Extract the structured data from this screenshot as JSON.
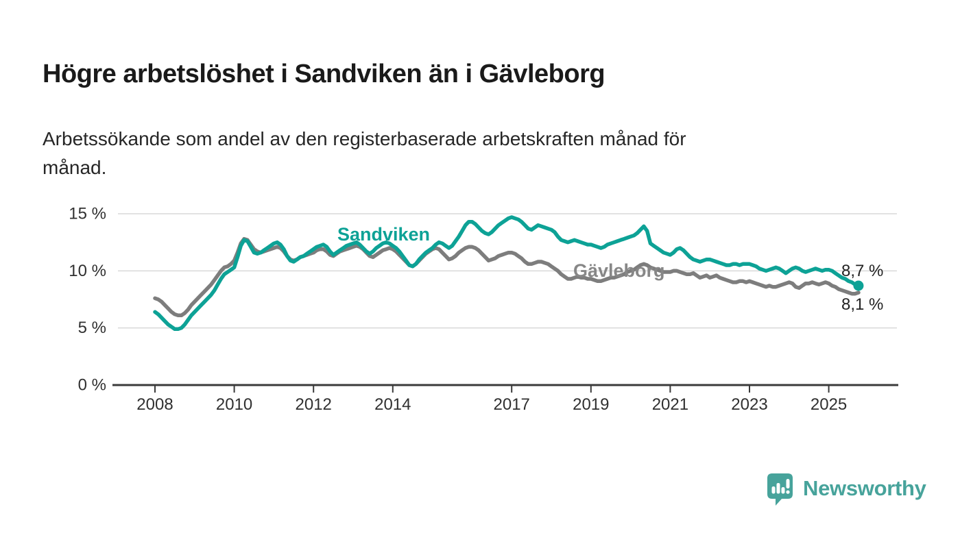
{
  "header": {
    "title": "Högre arbetslöshet i Sandviken än i Gävleborg",
    "subtitle": "Arbetssökande som andel av den registerbaserade arbetskraften månad för\nmånad."
  },
  "branding": {
    "logo_text": "Newsworthy",
    "logo_color": "#47a39b"
  },
  "colors": {
    "sandviken": "#0da296",
    "gavleborg": "#7d7d7d",
    "gavleborg_label": "#878787",
    "gridline": "#d9d9d9",
    "axis": "#3a3a3a"
  },
  "chart_data": {
    "type": "line",
    "unit": "%",
    "resolution": "monthly",
    "x_start": {
      "year": 2008,
      "month": 1
    },
    "x_end": {
      "year": 2025,
      "month": 10
    },
    "ylim": [
      0,
      15
    ],
    "grid": "horizontal",
    "legend_position": "inline-labels",
    "yticks": [
      {
        "value": 0,
        "label": "0 %"
      },
      {
        "value": 5,
        "label": "5 %"
      },
      {
        "value": 10,
        "label": "10 %"
      },
      {
        "value": 15,
        "label": "15 %"
      }
    ],
    "xticks": [
      {
        "year": 2008,
        "label": "2008"
      },
      {
        "year": 2010,
        "label": "2010"
      },
      {
        "year": 2012,
        "label": "2012"
      },
      {
        "year": 2014,
        "label": "2014"
      },
      {
        "year": 2017,
        "label": "2017"
      },
      {
        "year": 2019,
        "label": "2019"
      },
      {
        "year": 2021,
        "label": "2021"
      },
      {
        "year": 2023,
        "label": "2023"
      },
      {
        "year": 2025,
        "label": "2025"
      }
    ],
    "series": [
      {
        "name": "Sandviken",
        "end_label": "8,7 %",
        "end_value": 8.7,
        "values": [
          6.4,
          6.2,
          5.9,
          5.6,
          5.3,
          5.1,
          4.9,
          4.9,
          5.0,
          5.3,
          5.7,
          6.1,
          6.4,
          6.7,
          7.0,
          7.3,
          7.6,
          7.9,
          8.3,
          8.8,
          9.3,
          9.7,
          9.9,
          10.1,
          10.3,
          11.2,
          12.2,
          12.7,
          12.6,
          12.1,
          11.6,
          11.5,
          11.6,
          11.8,
          12.0,
          12.2,
          12.4,
          12.5,
          12.3,
          11.9,
          11.3,
          10.9,
          10.8,
          11.0,
          11.2,
          11.3,
          11.5,
          11.7,
          11.9,
          12.1,
          12.2,
          12.3,
          12.1,
          11.7,
          11.4,
          11.6,
          11.8,
          12.0,
          12.2,
          12.3,
          12.4,
          12.5,
          12.3,
          12.0,
          11.7,
          11.5,
          11.7,
          12.0,
          12.2,
          12.4,
          12.5,
          12.4,
          12.2,
          12.0,
          11.7,
          11.3,
          10.9,
          10.5,
          10.4,
          10.6,
          11.0,
          11.3,
          11.6,
          11.8,
          12.0,
          12.3,
          12.5,
          12.4,
          12.2,
          12.0,
          12.2,
          12.6,
          13.0,
          13.5,
          14.0,
          14.3,
          14.3,
          14.1,
          13.8,
          13.5,
          13.3,
          13.2,
          13.4,
          13.7,
          14.0,
          14.2,
          14.4,
          14.6,
          14.7,
          14.6,
          14.5,
          14.3,
          14.0,
          13.7,
          13.6,
          13.8,
          14.0,
          13.9,
          13.8,
          13.7,
          13.6,
          13.4,
          13.0,
          12.7,
          12.6,
          12.5,
          12.6,
          12.7,
          12.6,
          12.5,
          12.4,
          12.3,
          12.3,
          12.2,
          12.1,
          12.0,
          12.1,
          12.3,
          12.4,
          12.5,
          12.6,
          12.7,
          12.8,
          12.9,
          13.0,
          13.1,
          13.3,
          13.6,
          13.9,
          13.5,
          12.4,
          12.2,
          12.0,
          11.8,
          11.6,
          11.5,
          11.4,
          11.6,
          11.9,
          12.0,
          11.8,
          11.5,
          11.2,
          11.0,
          10.9,
          10.8,
          10.9,
          11.0,
          11.0,
          10.9,
          10.8,
          10.7,
          10.6,
          10.5,
          10.5,
          10.6,
          10.6,
          10.5,
          10.6,
          10.6,
          10.6,
          10.5,
          10.4,
          10.2,
          10.1,
          10.0,
          10.1,
          10.2,
          10.3,
          10.2,
          10.0,
          9.8,
          10.0,
          10.2,
          10.3,
          10.2,
          10.0,
          9.9,
          10.0,
          10.1,
          10.2,
          10.1,
          10.0,
          10.1,
          10.1,
          10.0,
          9.8,
          9.6,
          9.4,
          9.3,
          9.1,
          9.0,
          8.8,
          8.7
        ]
      },
      {
        "name": "Gävleborg",
        "end_label": "8,1 %",
        "end_value": 8.1,
        "values": [
          7.6,
          7.5,
          7.3,
          7.0,
          6.7,
          6.4,
          6.2,
          6.1,
          6.1,
          6.3,
          6.6,
          7.0,
          7.3,
          7.6,
          7.9,
          8.2,
          8.5,
          8.8,
          9.2,
          9.6,
          10.0,
          10.3,
          10.4,
          10.6,
          10.9,
          11.6,
          12.4,
          12.8,
          12.7,
          12.3,
          11.9,
          11.7,
          11.6,
          11.7,
          11.8,
          11.9,
          12.0,
          12.1,
          12.0,
          11.7,
          11.3,
          11.0,
          10.9,
          11.0,
          11.2,
          11.3,
          11.4,
          11.5,
          11.6,
          11.8,
          11.9,
          11.9,
          11.7,
          11.4,
          11.3,
          11.5,
          11.7,
          11.8,
          11.9,
          12.0,
          12.1,
          12.2,
          12.1,
          11.9,
          11.6,
          11.3,
          11.2,
          11.4,
          11.6,
          11.8,
          11.9,
          12.0,
          11.9,
          11.7,
          11.4,
          11.1,
          10.8,
          10.5,
          10.4,
          10.6,
          10.9,
          11.2,
          11.5,
          11.7,
          11.9,
          12.0,
          11.9,
          11.6,
          11.3,
          11.0,
          11.1,
          11.3,
          11.6,
          11.8,
          12.0,
          12.1,
          12.1,
          12.0,
          11.8,
          11.5,
          11.2,
          10.9,
          11.0,
          11.1,
          11.3,
          11.4,
          11.5,
          11.6,
          11.6,
          11.5,
          11.3,
          11.1,
          10.8,
          10.6,
          10.6,
          10.7,
          10.8,
          10.8,
          10.7,
          10.6,
          10.4,
          10.2,
          10.0,
          9.7,
          9.5,
          9.3,
          9.3,
          9.4,
          9.5,
          9.4,
          9.4,
          9.3,
          9.3,
          9.2,
          9.1,
          9.1,
          9.2,
          9.3,
          9.4,
          9.4,
          9.5,
          9.6,
          9.7,
          9.9,
          10.0,
          10.1,
          10.3,
          10.5,
          10.6,
          10.5,
          10.3,
          10.2,
          10.1,
          10.0,
          9.9,
          9.9,
          9.9,
          10.0,
          10.0,
          9.9,
          9.8,
          9.7,
          9.7,
          9.8,
          9.6,
          9.4,
          9.5,
          9.6,
          9.4,
          9.5,
          9.6,
          9.4,
          9.3,
          9.2,
          9.1,
          9.0,
          9.0,
          9.1,
          9.1,
          9.0,
          9.1,
          9.0,
          8.9,
          8.8,
          8.7,
          8.6,
          8.7,
          8.6,
          8.6,
          8.7,
          8.8,
          8.9,
          9.0,
          8.9,
          8.6,
          8.5,
          8.7,
          8.9,
          8.9,
          9.0,
          8.9,
          8.8,
          8.9,
          9.0,
          8.9,
          8.7,
          8.6,
          8.4,
          8.3,
          8.2,
          8.1,
          8.0,
          8.0,
          8.1
        ]
      }
    ]
  }
}
